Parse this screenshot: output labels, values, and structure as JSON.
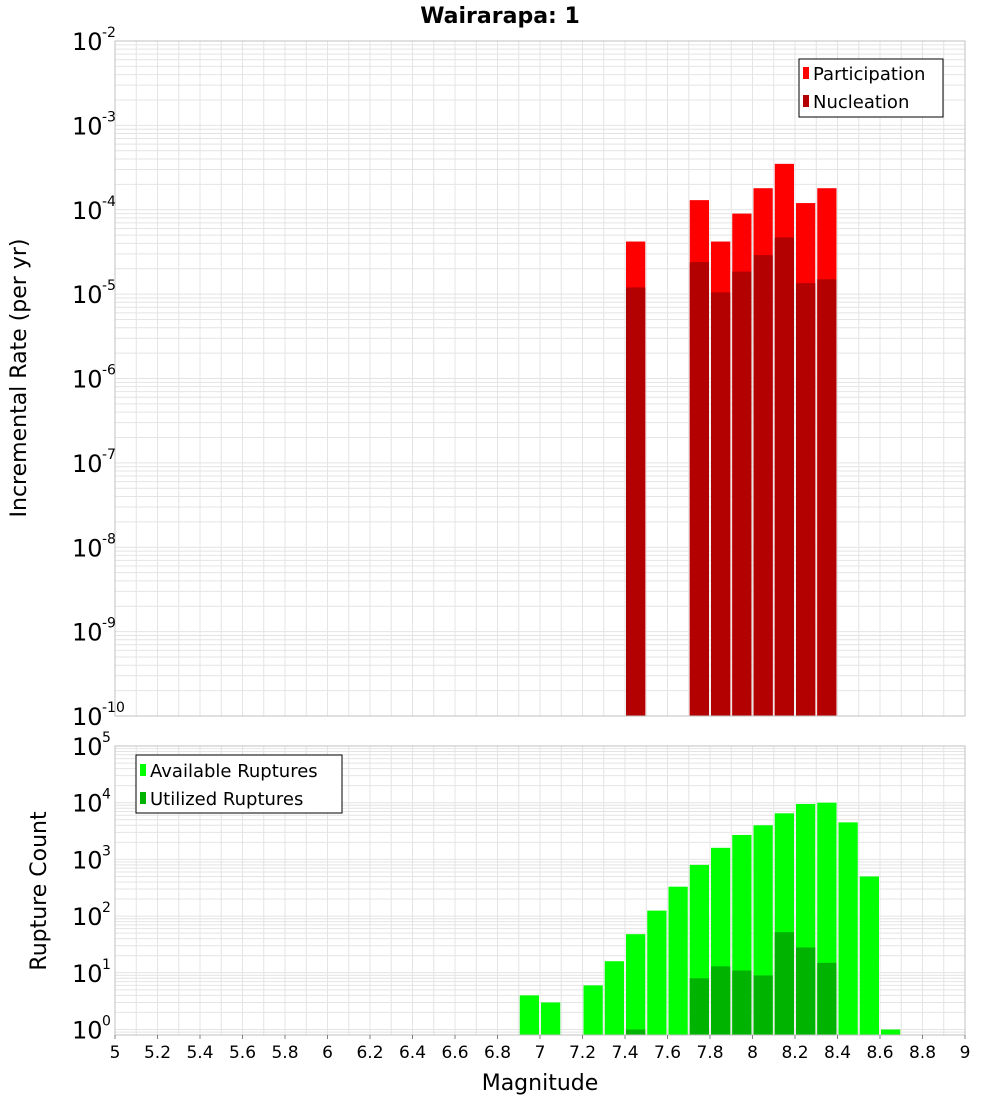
{
  "colors": {
    "participation": "#ff0000",
    "nucleation": "#b30000",
    "available": "#00ff00",
    "utilized": "#00b300",
    "grid": "#e4e4e4",
    "frame": "#c0c0c0"
  },
  "chart_data": [
    {
      "type": "bar",
      "title": "Wairarapa: 1",
      "xlabel": "Magnitude",
      "ylabel": "Incremental Rate (per yr)",
      "yscale": "log",
      "ylim": [
        1e-10,
        0.01
      ],
      "xlim": [
        5,
        9
      ],
      "bin_width": 0.1,
      "y_tick_base": "10",
      "y_tick_exponents": [
        "-10",
        "-9",
        "-8",
        "-7",
        "-6",
        "-5",
        "-4",
        "-3",
        "-2"
      ],
      "legend": {
        "position": "top-right",
        "entries": [
          "Participation",
          "Nucleation"
        ]
      },
      "series": [
        {
          "name": "Participation",
          "x": [
            7.45,
            7.75,
            7.85,
            7.95,
            8.05,
            8.15,
            8.25,
            8.35
          ],
          "values": [
            4.2e-05,
            0.00013,
            4.2e-05,
            9e-05,
            0.00018,
            0.00035,
            0.00012,
            0.00018
          ]
        },
        {
          "name": "Nucleation",
          "x": [
            7.45,
            7.75,
            7.85,
            7.95,
            8.05,
            8.15,
            8.25,
            8.35
          ],
          "values": [
            1.2e-05,
            2.4e-05,
            1.05e-05,
            1.85e-05,
            2.9e-05,
            4.7e-05,
            1.35e-05,
            1.5e-05
          ]
        }
      ]
    },
    {
      "type": "bar",
      "title": "",
      "xlabel": "Magnitude",
      "ylabel": "Rupture Count",
      "yscale": "log",
      "ylim": [
        0.8,
        100000
      ],
      "xlim": [
        5,
        9
      ],
      "bin_width": 0.1,
      "x_ticks": [
        "5",
        "5.2",
        "5.4",
        "5.6",
        "5.8",
        "6",
        "6.2",
        "6.4",
        "6.6",
        "6.8",
        "7",
        "7.2",
        "7.4",
        "7.6",
        "7.8",
        "8",
        "8.2",
        "8.4",
        "8.6",
        "8.8",
        "9"
      ],
      "y_tick_base": "10",
      "y_tick_exponents": [
        "0",
        "1",
        "2",
        "3",
        "4",
        "5"
      ],
      "legend": {
        "position": "top-left",
        "entries": [
          "Available Ruptures",
          "Utilized Ruptures"
        ]
      },
      "series": [
        {
          "name": "Available Ruptures",
          "x": [
            6.95,
            7.05,
            7.25,
            7.35,
            7.45,
            7.55,
            7.65,
            7.75,
            7.85,
            7.95,
            8.05,
            8.15,
            8.25,
            8.35,
            8.45,
            8.55,
            8.65
          ],
          "values": [
            4,
            3,
            6,
            16,
            48,
            125,
            330,
            800,
            1600,
            2700,
            4000,
            6500,
            9500,
            10000,
            4500,
            500,
            1
          ]
        },
        {
          "name": "Utilized Ruptures",
          "x": [
            7.45,
            7.75,
            7.85,
            7.95,
            8.05,
            8.15,
            8.25,
            8.35
          ],
          "values": [
            1,
            8,
            13,
            11,
            9,
            52,
            28,
            15
          ]
        }
      ]
    }
  ]
}
